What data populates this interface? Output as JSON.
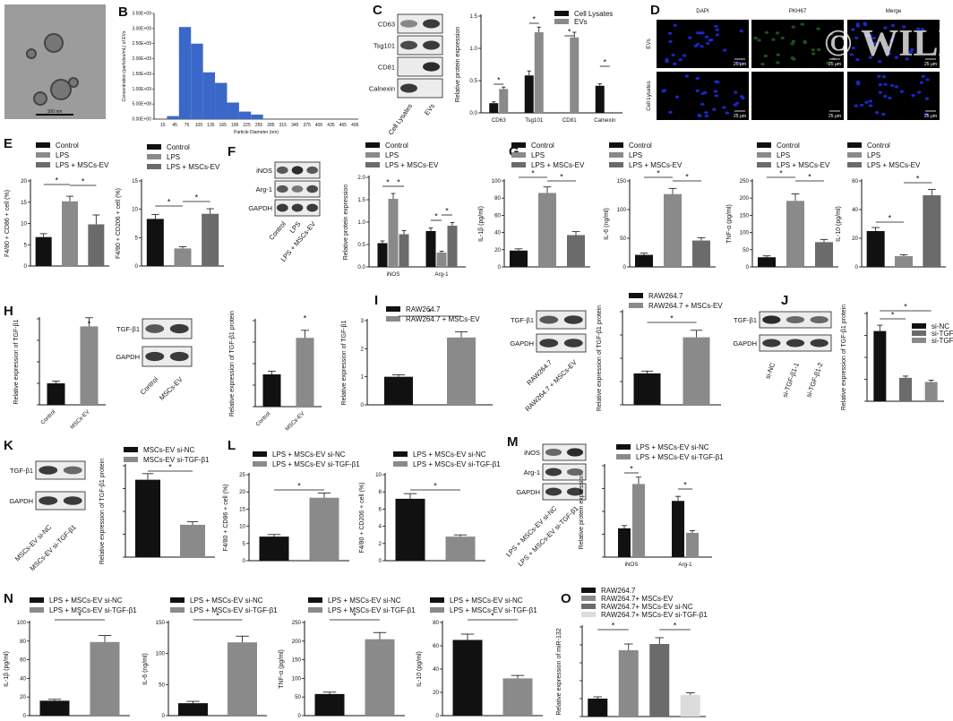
{
  "panel_labels": {
    "A": "A",
    "B": "B",
    "C": "C",
    "D": "D",
    "E": "E",
    "F": "F",
    "G": "G",
    "H": "H",
    "I": "I",
    "J": "J",
    "K": "K",
    "L": "L",
    "M": "M",
    "N": "N",
    "O": "O"
  },
  "colors": {
    "black": "#111111",
    "gray": "#8a8a8a",
    "dark": "#6b6b6b",
    "light": "#c8c8c8",
    "blue": "#3d6fc4",
    "hist_blue": "#3a68c8",
    "fluor_blue": "#1c2ad8",
    "panel_bg": "#000000"
  },
  "sig": "*",
  "panel_a": {
    "scale_text": "100 nm"
  },
  "panel_d": {
    "columns": [
      "DAPI",
      "PKH67",
      "Merge"
    ],
    "rows": [
      "EVs",
      "Cell Lysates"
    ],
    "scale": "25 μm",
    "watermark": "© WILEY"
  },
  "blots": {
    "c": {
      "rows": [
        "CD63",
        "Tsg101",
        "CD81",
        "Calnexin"
      ],
      "lanes": [
        "Cell Lysates",
        "EVs"
      ]
    },
    "f": {
      "rows": [
        "iNOS",
        "Arg-1",
        "GAPDH"
      ],
      "lanes": [
        "Control",
        "LPS",
        "LPS + MSCs-EV"
      ]
    },
    "h": {
      "rows": [
        "TGF-β1",
        "GAPDH"
      ],
      "lanes": [
        "Control",
        "MSCs-EV"
      ]
    },
    "i": {
      "rows": [
        "TGF-β1",
        "GAPDH"
      ],
      "lanes": [
        "RAW264.7",
        "RAW264.7 + MSCs-EV"
      ]
    },
    "j": {
      "rows": [
        "TGF-β1",
        "GAPDH"
      ],
      "lanes": [
        "si-NC",
        "si-TGF-β1-1",
        "si-TGF-β1-2"
      ]
    },
    "k": {
      "rows": [
        "TGF-β1",
        "GAPDH"
      ],
      "lanes": [
        "MSCs-EV si-NC",
        "MSCs-EV si-TGF-β1"
      ]
    },
    "m": {
      "rows": [
        "iNOS",
        "Arg-1",
        "GAPDH"
      ],
      "lanes": [
        "LPS + MSCs-EV si-NC",
        "LPS + MSCs-EV si-TGF-β1"
      ]
    }
  },
  "chart_data": [
    {
      "id": "B",
      "type": "bar",
      "title": "",
      "xlabel": "Particle Diameter (nm)",
      "ylabel": "Concentration (particles/mL) of EVs",
      "categories": [
        "15",
        "45",
        "75",
        "105",
        "135",
        "165",
        "195",
        "225",
        "255",
        "285",
        "315",
        "345",
        "375",
        "405",
        "435",
        "465",
        "495"
      ],
      "values": [
        0,
        100000000.0,
        3050000000.0,
        2500000000.0,
        1550000000.0,
        1200000000.0,
        550000000.0,
        250000000.0,
        150000000.0,
        0,
        0,
        0,
        0,
        0,
        0,
        0,
        0
      ],
      "ylim": [
        0,
        3500000000.0
      ],
      "yticks": [
        "0.00E+00",
        "5.00E+08",
        "1.00E+09",
        "1.50E+09",
        "2.00E+09",
        "2.50E+09",
        "3.00E+09",
        "3.50E+09"
      ]
    },
    {
      "id": "C",
      "type": "bar",
      "ylabel": "Relative protein expression",
      "categories": [
        "CD63",
        "Tsg101",
        "CD81",
        "Calnexin"
      ],
      "series": [
        {
          "name": "Cell Lysates",
          "values": [
            0.15,
            0.58,
            0,
            0.42
          ],
          "errors": [
            0.02,
            0.07,
            0,
            0.03
          ]
        },
        {
          "name": "EVs",
          "values": [
            0.37,
            1.25,
            1.17,
            0
          ],
          "errors": [
            0.03,
            0.08,
            0.08,
            0
          ]
        }
      ],
      "ylim": [
        0,
        1.5
      ],
      "yticks": [
        "0.0",
        "0.5",
        "1.0",
        "1.5"
      ],
      "sig": [
        [
          0,
          1
        ],
        [
          1,
          1
        ],
        [
          2,
          1
        ],
        [
          3,
          1
        ]
      ]
    },
    {
      "id": "E1",
      "type": "bar",
      "ylabel": "F4/80 + CD86 + cell (%)",
      "categories": [
        "Control",
        "LPS",
        "LPS + MSCs-EV"
      ],
      "values": [
        6.8,
        15.2,
        9.8
      ],
      "errors": [
        0.8,
        1.2,
        2.2
      ],
      "ylim": [
        0,
        20
      ],
      "yticks": [
        "0",
        "5",
        "10",
        "15",
        "20"
      ]
    },
    {
      "id": "E2",
      "type": "bar",
      "ylabel": "F4/80 + CD206 + cell (%)",
      "categories": [
        "Control",
        "LPS",
        "LPS + MSCs-EV"
      ],
      "values": [
        8.3,
        3.1,
        9.2
      ],
      "errors": [
        0.8,
        0.3,
        0.9
      ],
      "ylim": [
        0,
        15
      ],
      "yticks": [
        "0",
        "5",
        "10",
        "15"
      ]
    },
    {
      "id": "F",
      "type": "bar",
      "ylabel": "Relative protein expression",
      "categories": [
        "iNOS",
        "Arg-1"
      ],
      "series": [
        {
          "name": "Control",
          "values": [
            0.53,
            0.8
          ],
          "errors": [
            0.05,
            0.07
          ]
        },
        {
          "name": "LPS",
          "values": [
            1.52,
            0.32
          ],
          "errors": [
            0.12,
            0.03
          ]
        },
        {
          "name": "LPS + MSCs-EV",
          "values": [
            0.73,
            0.92
          ],
          "errors": [
            0.08,
            0.07
          ]
        }
      ],
      "ylim": [
        0,
        2.0
      ],
      "yticks": [
        "0.0",
        "0.5",
        "1.0",
        "1.5",
        "2.0"
      ]
    },
    {
      "id": "G1",
      "type": "bar",
      "ylabel": "IL-1β (pg/ml)",
      "categories": [
        "Control",
        "LPS",
        "LPS + MSCs-EV"
      ],
      "values": [
        19,
        86,
        37
      ],
      "errors": [
        2,
        7,
        4
      ],
      "ylim": [
        0,
        100
      ],
      "yticks": [
        "0",
        "20",
        "40",
        "60",
        "80",
        "100"
      ]
    },
    {
      "id": "G2",
      "type": "bar",
      "ylabel": "IL-6 (ng/ml)",
      "categories": [
        "Control",
        "LPS",
        "LPS + MSCs-EV"
      ],
      "values": [
        21,
        127,
        46
      ],
      "errors": [
        3,
        10,
        5
      ],
      "ylim": [
        0,
        150
      ],
      "yticks": [
        "0",
        "50",
        "100",
        "150"
      ]
    },
    {
      "id": "G3",
      "type": "bar",
      "ylabel": "TNF-α (pg/ml)",
      "categories": [
        "Control",
        "LPS",
        "LPS + MSCs-EV"
      ],
      "values": [
        28,
        192,
        72
      ],
      "errors": [
        4,
        20,
        8
      ],
      "ylim": [
        0,
        250
      ],
      "yticks": [
        "0",
        "50",
        "100",
        "150",
        "200",
        "250"
      ]
    },
    {
      "id": "G4",
      "type": "bar",
      "ylabel": "IL-10 (pg/ml)",
      "categories": [
        "Control",
        "LPS",
        "LPS + MSCs-EV"
      ],
      "values": [
        25,
        7.5,
        50
      ],
      "errors": [
        2.5,
        1,
        4
      ],
      "ylim": [
        0,
        60
      ],
      "yticks": [
        "0",
        "20",
        "40",
        "60"
      ]
    },
    {
      "id": "H1",
      "type": "bar",
      "ylabel": "Relative expression of TGF-β1",
      "categories": [
        "Control",
        "MSCs-EV"
      ],
      "values": [
        1.0,
        3.65
      ],
      "errors": [
        0.1,
        0.4
      ],
      "ylim": [
        0,
        4
      ],
      "yticks": []
    },
    {
      "id": "H2",
      "type": "bar",
      "ylabel": "Relative expression of TGF-β1 protein",
      "categories": [
        "Control",
        "MSCs-EV"
      ],
      "values": [
        0.3,
        0.64
      ],
      "errors": [
        0.03,
        0.07
      ],
      "ylim": [
        0,
        0.8
      ],
      "yticks": []
    },
    {
      "id": "I1",
      "type": "bar",
      "ylabel": "Relative expression of TGF-β1",
      "categories": [
        "RAW264.7",
        "RAW264.7 + MSCs-EV"
      ],
      "values": [
        1.0,
        2.4
      ],
      "errors": [
        0.07,
        0.2
      ],
      "ylim": [
        0,
        3
      ],
      "yticks": [
        "0",
        "1",
        "2",
        "3"
      ]
    },
    {
      "id": "I2",
      "type": "bar",
      "ylabel": "Relative expression of TGF-β1 protein",
      "categories": [
        "RAW264.7",
        "RAW264.7 + MSCs-EV"
      ],
      "values": [
        0.27,
        0.58
      ],
      "errors": [
        0.02,
        0.06
      ],
      "ylim": [
        0,
        0.8
      ],
      "yticks": []
    },
    {
      "id": "J",
      "type": "bar",
      "ylabel": "Relative expression of TGF-β1 protein",
      "categories": [
        "si-NC",
        "si-TGF-β1-1",
        "si-TGF-β1-2"
      ],
      "values": [
        1.2,
        0.4,
        0.33
      ],
      "errors": [
        0.1,
        0.03,
        0.03
      ],
      "ylim": [
        0,
        1.5
      ],
      "yticks": []
    },
    {
      "id": "K",
      "type": "bar",
      "ylabel": "Relative expression of TGF-β1 protein",
      "categories": [
        "MSCs-EV si-NC",
        "MSCs-EV si-TGF-β1"
      ],
      "values": [
        1.27,
        0.53
      ],
      "errors": [
        0.1,
        0.05
      ],
      "ylim": [
        0,
        1.5
      ],
      "yticks": []
    },
    {
      "id": "L1",
      "type": "bar",
      "ylabel": "F4/80 + CD86 + cell (%)",
      "categories": [
        "LPS + MSCs-EV si-NC",
        "LPS + MSCs-EV si-TGF-β1"
      ],
      "values": [
        7.0,
        18.3
      ],
      "errors": [
        0.6,
        1.4
      ],
      "ylim": [
        0,
        25
      ],
      "yticks": [
        "0",
        "5",
        "10",
        "15",
        "20",
        "25"
      ]
    },
    {
      "id": "L2",
      "type": "bar",
      "ylabel": "F4/80 + CD206 + cell (%)",
      "categories": [
        "LPS + MSCs-EV si-NC",
        "LPS + MSCs-EV si-TGF-β1"
      ],
      "values": [
        7.2,
        2.8
      ],
      "errors": [
        0.6,
        0.2
      ],
      "ylim": [
        0,
        10
      ],
      "yticks": [
        "0",
        "2",
        "4",
        "6",
        "8",
        "10"
      ]
    },
    {
      "id": "M",
      "type": "bar",
      "ylabel": "Relative protein expression",
      "categories": [
        "iNOS",
        "Arg-1"
      ],
      "series": [
        {
          "name": "LPS + MSCs-EV si-NC",
          "values": [
            0.63,
            1.23
          ],
          "errors": [
            0.06,
            0.1
          ]
        },
        {
          "name": "LPS + MSCs-EV si-TGF-β1",
          "values": [
            1.6,
            0.53
          ],
          "errors": [
            0.15,
            0.05
          ]
        }
      ],
      "ylim": [
        0,
        2.0
      ],
      "yticks": []
    },
    {
      "id": "N1",
      "type": "bar",
      "ylabel": "IL-1β (pg/ml)",
      "categories": [
        "LPS + MSCs-EV si-NC",
        "LPS + MSCs-EV si-TGF-β1"
      ],
      "values": [
        16,
        79
      ],
      "errors": [
        1.5,
        7
      ],
      "ylim": [
        0,
        100
      ],
      "yticks": [
        "0",
        "20",
        "40",
        "60",
        "80",
        "100"
      ]
    },
    {
      "id": "N2",
      "type": "bar",
      "ylabel": "IL-6 (ng/ml)",
      "categories": [
        "LPS + MSCs-EV si-NC",
        "LPS + MSCs-EV si-TGF-β1"
      ],
      "values": [
        20,
        118
      ],
      "errors": [
        3,
        10
      ],
      "ylim": [
        0,
        150
      ],
      "yticks": [
        "0",
        "50",
        "100",
        "150"
      ]
    },
    {
      "id": "N3",
      "type": "bar",
      "ylabel": "TNF-α (pg/ml)",
      "categories": [
        "LPS + MSCs-EV si-NC",
        "LPS + MSCs-EV si-TGF-β1"
      ],
      "values": [
        58,
        205
      ],
      "errors": [
        5,
        18
      ],
      "ylim": [
        0,
        250
      ],
      "yticks": [
        "0",
        "50",
        "100",
        "150",
        "200",
        "250"
      ]
    },
    {
      "id": "N4",
      "type": "bar",
      "ylabel": "IL-10 (pg/ml)",
      "categories": [
        "LPS + MSCs-EV si-NC",
        "LPS + MSCs-EV si-TGF-β1"
      ],
      "values": [
        65,
        32
      ],
      "errors": [
        5,
        2.5
      ],
      "ylim": [
        0,
        80
      ],
      "yticks": [
        "0",
        "20",
        "40",
        "60",
        "80"
      ]
    },
    {
      "id": "O",
      "type": "bar",
      "ylabel": "Relative expression of miR-132",
      "categories": [
        "RAW264.7",
        "RAW264.7+ MSCs-EV",
        "RAW264.7+ MSCs-EV si-NC",
        "RAW264.7+ MSCs-EV si-TGF-β1"
      ],
      "values": [
        1.0,
        3.7,
        4.05,
        1.2
      ],
      "errors": [
        0.1,
        0.35,
        0.35,
        0.12
      ],
      "ylim": [
        0,
        5
      ],
      "yticks": []
    }
  ]
}
